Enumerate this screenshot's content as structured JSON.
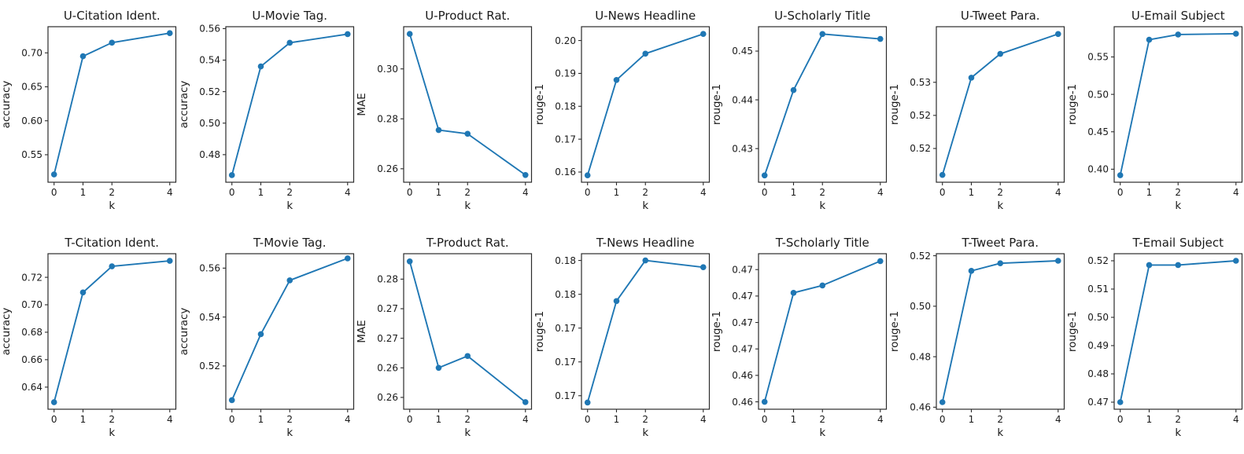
{
  "figure": {
    "line_color": "#1f77b4",
    "axis_color": "#2b2b2b",
    "text_color": "#1a1a1a",
    "background": "#ffffff"
  },
  "chart_data": [
    {
      "type": "line",
      "title": "U-Citation Ident.",
      "xlabel": "k",
      "ylabel": "accuracy",
      "x": [
        0,
        1,
        2,
        4
      ],
      "values": [
        0.521,
        0.695,
        0.715,
        0.729
      ],
      "xlim": [
        -0.21,
        4.21
      ],
      "ylim": [
        0.5095,
        0.7385
      ],
      "xticks": [
        [
          0,
          "0"
        ],
        [
          1,
          "1"
        ],
        [
          2,
          "2"
        ],
        [
          4,
          "4"
        ]
      ],
      "yticks": [
        [
          0.55,
          "0.55"
        ],
        [
          0.6,
          "0.60"
        ],
        [
          0.65,
          "0.65"
        ],
        [
          0.7,
          "0.70"
        ]
      ],
      "grid": false,
      "legend": null
    },
    {
      "type": "line",
      "title": "U-Movie Tag.",
      "xlabel": "k",
      "ylabel": "accuracy",
      "x": [
        0,
        1,
        2,
        4
      ],
      "values": [
        0.467,
        0.536,
        0.551,
        0.5565
      ],
      "xlim": [
        -0.21,
        4.21
      ],
      "ylim": [
        0.4625,
        0.5612
      ],
      "xticks": [
        [
          0,
          "0"
        ],
        [
          1,
          "1"
        ],
        [
          2,
          "2"
        ],
        [
          4,
          "4"
        ]
      ],
      "yticks": [
        [
          0.48,
          "0.48"
        ],
        [
          0.5,
          "0.50"
        ],
        [
          0.52,
          "0.52"
        ],
        [
          0.54,
          "0.54"
        ],
        [
          0.56,
          "0.56"
        ]
      ],
      "grid": false,
      "legend": null
    },
    {
      "type": "line",
      "title": "U-Product Rat.",
      "xlabel": "k",
      "ylabel": "MAE",
      "x": [
        0,
        1,
        2,
        4
      ],
      "values": [
        0.314,
        0.2755,
        0.274,
        0.2575
      ],
      "xlim": [
        -0.21,
        4.21
      ],
      "ylim": [
        0.2546,
        0.3169
      ],
      "xticks": [
        [
          0,
          "0"
        ],
        [
          1,
          "1"
        ],
        [
          2,
          "2"
        ],
        [
          4,
          "4"
        ]
      ],
      "yticks": [
        [
          0.26,
          "0.26"
        ],
        [
          0.28,
          "0.28"
        ],
        [
          0.3,
          "0.30"
        ]
      ],
      "grid": false,
      "legend": null
    },
    {
      "type": "line",
      "title": "U-News Headline",
      "xlabel": "k",
      "ylabel": "rouge-1",
      "x": [
        0,
        1,
        2,
        4
      ],
      "values": [
        0.159,
        0.188,
        0.196,
        0.202
      ],
      "xlim": [
        -0.21,
        4.21
      ],
      "ylim": [
        0.1569,
        0.2042
      ],
      "xticks": [
        [
          0,
          "0"
        ],
        [
          1,
          "1"
        ],
        [
          2,
          "2"
        ],
        [
          4,
          "4"
        ]
      ],
      "yticks": [
        [
          0.16,
          "0.16"
        ],
        [
          0.17,
          "0.17"
        ],
        [
          0.18,
          "0.18"
        ],
        [
          0.19,
          "0.19"
        ],
        [
          0.2,
          "0.20"
        ]
      ],
      "grid": false,
      "legend": null
    },
    {
      "type": "line",
      "title": "U-Scholarly Title",
      "xlabel": "k",
      "ylabel": "rouge-1",
      "x": [
        0,
        1,
        2,
        4
      ],
      "values": [
        0.4245,
        0.442,
        0.4535,
        0.4525
      ],
      "xlim": [
        -0.21,
        4.21
      ],
      "ylim": [
        0.4231,
        0.455
      ],
      "xticks": [
        [
          0,
          "0"
        ],
        [
          1,
          "1"
        ],
        [
          2,
          "2"
        ],
        [
          4,
          "4"
        ]
      ],
      "yticks": [
        [
          0.43,
          "0.43"
        ],
        [
          0.44,
          "0.44"
        ],
        [
          0.45,
          "0.45"
        ]
      ],
      "grid": false,
      "legend": null
    },
    {
      "type": "line",
      "title": "U-Tweet Para.",
      "xlabel": "k",
      "ylabel": "rouge-1",
      "x": [
        0,
        1,
        2,
        4
      ],
      "values": [
        0.511,
        0.5257,
        0.5293,
        0.5323
      ],
      "xlim": [
        -0.21,
        4.21
      ],
      "ylim": [
        0.5099,
        0.5334
      ],
      "xticks": [
        [
          0,
          "0"
        ],
        [
          1,
          "1"
        ],
        [
          2,
          "2"
        ],
        [
          4,
          "4"
        ]
      ],
      "yticks": [
        [
          0.515,
          "0.52"
        ],
        [
          0.52,
          "0.52"
        ],
        [
          0.525,
          "0.53"
        ]
      ],
      "grid": false,
      "legend": null
    },
    {
      "type": "line",
      "title": "U-Email Subject",
      "xlabel": "k",
      "ylabel": "rouge-1",
      "x": [
        0,
        1,
        2,
        4
      ],
      "values": [
        0.392,
        0.573,
        0.58,
        0.581
      ],
      "xlim": [
        -0.21,
        4.21
      ],
      "ylim": [
        0.3826,
        0.5904
      ],
      "xticks": [
        [
          0,
          "0"
        ],
        [
          1,
          "1"
        ],
        [
          2,
          "2"
        ],
        [
          4,
          "4"
        ]
      ],
      "yticks": [
        [
          0.4,
          "0.40"
        ],
        [
          0.45,
          "0.45"
        ],
        [
          0.5,
          "0.50"
        ],
        [
          0.55,
          "0.55"
        ]
      ],
      "grid": false,
      "legend": null
    },
    {
      "type": "line",
      "title": "T-Citation Ident.",
      "xlabel": "k",
      "ylabel": "accuracy",
      "x": [
        0,
        1,
        2,
        4
      ],
      "values": [
        0.629,
        0.709,
        0.728,
        0.732
      ],
      "xlim": [
        -0.21,
        4.21
      ],
      "ylim": [
        0.6239,
        0.7372
      ],
      "xticks": [
        [
          0,
          "0"
        ],
        [
          1,
          "1"
        ],
        [
          2,
          "2"
        ],
        [
          4,
          "4"
        ]
      ],
      "yticks": [
        [
          0.64,
          "0.64"
        ],
        [
          0.66,
          "0.66"
        ],
        [
          0.68,
          "0.68"
        ],
        [
          0.7,
          "0.70"
        ],
        [
          0.72,
          "0.72"
        ]
      ],
      "grid": false,
      "legend": null
    },
    {
      "type": "line",
      "title": "T-Movie Tag.",
      "xlabel": "k",
      "ylabel": "accuracy",
      "x": [
        0,
        1,
        2,
        4
      ],
      "values": [
        0.506,
        0.533,
        0.555,
        0.564
      ],
      "xlim": [
        -0.21,
        4.21
      ],
      "ylim": [
        0.5023,
        0.5659
      ],
      "xticks": [
        [
          0,
          "0"
        ],
        [
          1,
          "1"
        ],
        [
          2,
          "2"
        ],
        [
          4,
          "4"
        ]
      ],
      "yticks": [
        [
          0.52,
          "0.52"
        ],
        [
          0.54,
          "0.54"
        ],
        [
          0.56,
          "0.56"
        ]
      ],
      "grid": false,
      "legend": null
    },
    {
      "type": "line",
      "title": "T-Product Rat.",
      "xlabel": "k",
      "ylabel": "MAE",
      "x": [
        0,
        1,
        2,
        4
      ],
      "values": [
        0.283,
        0.265,
        0.267,
        0.2592
      ],
      "xlim": [
        -0.21,
        4.21
      ],
      "ylim": [
        0.258,
        0.2843
      ],
      "xticks": [
        [
          0,
          "0"
        ],
        [
          1,
          "1"
        ],
        [
          2,
          "2"
        ],
        [
          4,
          "4"
        ]
      ],
      "yticks": [
        [
          0.26,
          "0.26"
        ],
        [
          0.265,
          "0.26"
        ],
        [
          0.27,
          "0.27"
        ],
        [
          0.275,
          "0.27"
        ],
        [
          0.28,
          "0.28"
        ]
      ],
      "grid": false,
      "legend": null
    },
    {
      "type": "line",
      "title": "T-News Headline",
      "xlabel": "k",
      "ylabel": "rouge-1",
      "x": [
        0,
        1,
        2,
        4
      ],
      "values": [
        0.1695,
        0.177,
        0.18,
        0.1795
      ],
      "xlim": [
        -0.21,
        4.21
      ],
      "ylim": [
        0.169,
        0.1805
      ],
      "xticks": [
        [
          0,
          "0"
        ],
        [
          1,
          "1"
        ],
        [
          2,
          "2"
        ],
        [
          4,
          "4"
        ]
      ],
      "yticks": [
        [
          0.17,
          "0.17"
        ],
        [
          0.1725,
          "0.17"
        ],
        [
          0.175,
          "0.17"
        ],
        [
          0.1775,
          "0.18"
        ],
        [
          0.18,
          "0.18"
        ]
      ],
      "grid": false,
      "legend": null
    },
    {
      "type": "line",
      "title": "T-Scholarly Title",
      "xlabel": "k",
      "ylabel": "rouge-1",
      "x": [
        0,
        1,
        2,
        4
      ],
      "values": [
        0.46,
        0.4703,
        0.471,
        0.4733
      ],
      "xlim": [
        -0.21,
        4.21
      ],
      "ylim": [
        0.4593,
        0.474
      ],
      "xticks": [
        [
          0,
          "0"
        ],
        [
          1,
          "1"
        ],
        [
          2,
          "2"
        ],
        [
          4,
          "4"
        ]
      ],
      "yticks": [
        [
          0.46,
          "0.46"
        ],
        [
          0.4625,
          "0.46"
        ],
        [
          0.465,
          "0.47"
        ],
        [
          0.4675,
          "0.47"
        ],
        [
          0.47,
          "0.47"
        ],
        [
          0.4725,
          "0.47"
        ]
      ],
      "grid": false,
      "legend": null
    },
    {
      "type": "line",
      "title": "T-Tweet Para.",
      "xlabel": "k",
      "ylabel": "rouge-1",
      "x": [
        0,
        1,
        2,
        4
      ],
      "values": [
        0.462,
        0.514,
        0.517,
        0.518
      ],
      "xlim": [
        -0.21,
        4.21
      ],
      "ylim": [
        0.4592,
        0.5208
      ],
      "xticks": [
        [
          0,
          "0"
        ],
        [
          1,
          "1"
        ],
        [
          2,
          "2"
        ],
        [
          4,
          "4"
        ]
      ],
      "yticks": [
        [
          0.46,
          "0.46"
        ],
        [
          0.48,
          "0.48"
        ],
        [
          0.5,
          "0.50"
        ],
        [
          0.52,
          "0.52"
        ]
      ],
      "grid": false,
      "legend": null
    },
    {
      "type": "line",
      "title": "T-Email Subject",
      "xlabel": "k",
      "ylabel": "rouge-1",
      "x": [
        0,
        1,
        2,
        4
      ],
      "values": [
        0.47,
        0.5185,
        0.5185,
        0.52
      ],
      "xlim": [
        -0.21,
        4.21
      ],
      "ylim": [
        0.4675,
        0.5225
      ],
      "xticks": [
        [
          0,
          "0"
        ],
        [
          1,
          "1"
        ],
        [
          2,
          "2"
        ],
        [
          4,
          "4"
        ]
      ],
      "yticks": [
        [
          0.47,
          "0.47"
        ],
        [
          0.48,
          "0.48"
        ],
        [
          0.49,
          "0.49"
        ],
        [
          0.5,
          "0.50"
        ],
        [
          0.51,
          "0.51"
        ],
        [
          0.52,
          "0.52"
        ]
      ],
      "grid": false,
      "legend": null
    }
  ]
}
